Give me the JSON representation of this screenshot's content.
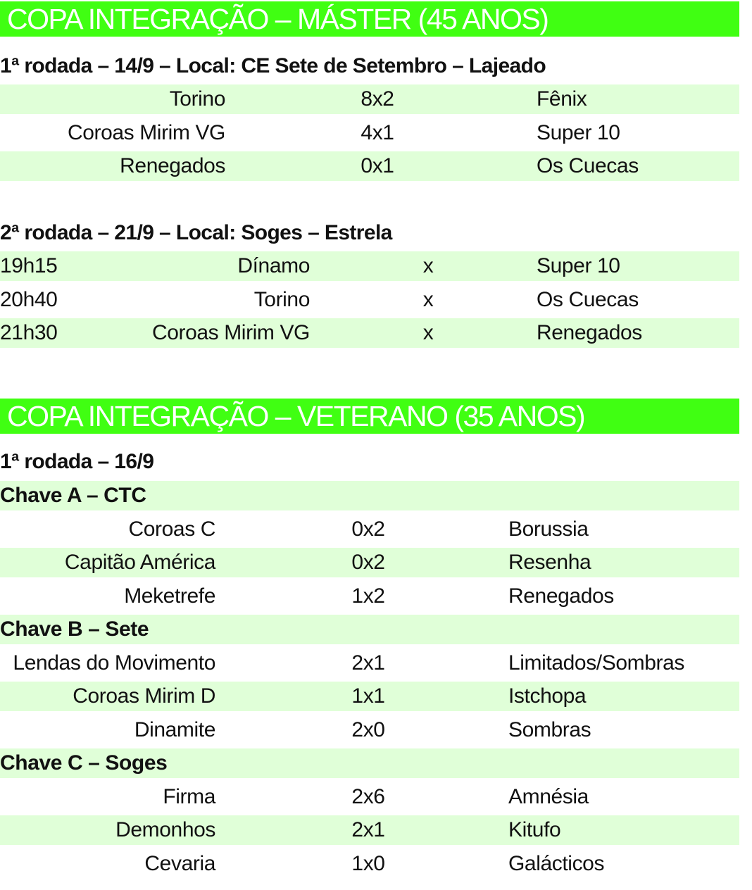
{
  "master": {
    "title": "COPA INTEGRAÇÃO – MÁSTER (45 ANOS)",
    "round1": {
      "heading": "1ª rodada – 14/9 – Local: CE Sete de Setembro – Lajeado",
      "matches": [
        {
          "home": "Torino",
          "score": "8x2",
          "away": "Fênix"
        },
        {
          "home": "Coroas Mirim VG",
          "score": "4x1",
          "away": "Super 10"
        },
        {
          "home": "Renegados",
          "score": "0x1",
          "away": "Os Cuecas"
        }
      ]
    },
    "round2": {
      "heading": "2ª rodada – 21/9 – Local: Soges – Estrela",
      "matches": [
        {
          "time": "19h15",
          "home": "Dínamo",
          "score": "x",
          "away": "Super 10"
        },
        {
          "time": "20h40",
          "home": "Torino",
          "score": "x",
          "away": "Os Cuecas"
        },
        {
          "time": "21h30",
          "home": "Coroas Mirim VG",
          "score": "x",
          "away": "Renegados"
        }
      ]
    }
  },
  "veterano": {
    "title": "COPA INTEGRAÇÃO – VETERANO (35 ANOS)",
    "round1": {
      "heading": "1ª rodada – 16/9",
      "groups": [
        {
          "name": "Chave A – CTC",
          "matches": [
            {
              "home": "Coroas C",
              "score": "0x2",
              "away": "Borussia"
            },
            {
              "home": "Capitão América",
              "score": "0x2",
              "away": "Resenha"
            },
            {
              "home": "Meketrefe",
              "score": "1x2",
              "away": "Renegados"
            }
          ]
        },
        {
          "name": "Chave B – Sete",
          "matches": [
            {
              "home": "Lendas do Movimento",
              "score": "2x1",
              "away": "Limitados/Sombras"
            },
            {
              "home": "Coroas Mirim D",
              "score": "1x1",
              "away": "Istchopa"
            },
            {
              "home": "Dinamite",
              "score": "2x0",
              "away": "Sombras"
            }
          ]
        },
        {
          "name": "Chave C – Soges",
          "matches": [
            {
              "home": "Firma",
              "score": "2x6",
              "away": "Amnésia"
            },
            {
              "home": "Demonhos",
              "score": "2x1",
              "away": "Kitufo"
            },
            {
              "home": "Cevaria",
              "score": "1x0",
              "away": "Galácticos"
            }
          ]
        }
      ]
    }
  },
  "colors": {
    "banner": "#40ff12",
    "stripe": "#e0ffd8"
  }
}
